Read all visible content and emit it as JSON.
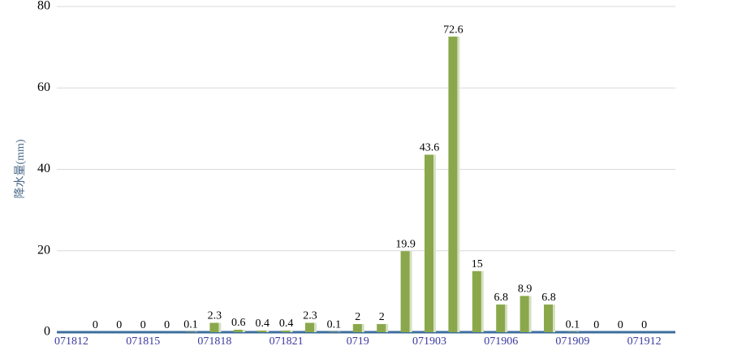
{
  "chart_data": {
    "type": "bar",
    "y_label": "降水量(mm)",
    "categories": [
      "071812",
      null,
      null,
      "071815",
      null,
      null,
      "071818",
      null,
      null,
      "071821",
      null,
      null,
      "0719",
      null,
      null,
      "071903",
      null,
      null,
      "071906",
      null,
      null,
      "071909",
      null,
      null,
      "071912",
      null
    ],
    "values": [
      null,
      0,
      0,
      0,
      0,
      0.1,
      2.3,
      0.6,
      0.4,
      0.4,
      2.3,
      0.1,
      2,
      2,
      19.9,
      43.6,
      72.6,
      15,
      6.8,
      8.9,
      6.8,
      0.1,
      0,
      0,
      0,
      null
    ],
    "color": "#8aa84b",
    "ylim": [
      0,
      80
    ],
    "yticks": [
      0,
      20,
      40,
      60,
      80
    ],
    "grid": true
  }
}
